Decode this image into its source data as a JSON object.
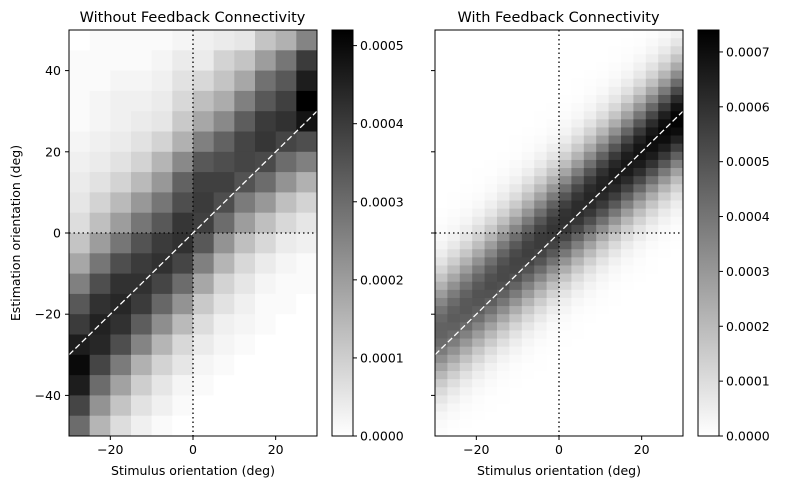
{
  "chart_data": [
    {
      "type": "heatmap",
      "title": "Without Feedback Connectivity",
      "xlabel": "Stimulus orientation (deg)",
      "ylabel": "Estimation orientation (deg)",
      "xlim": [
        -30,
        30
      ],
      "ylim": [
        -50,
        50
      ],
      "xticks": [
        -20,
        0,
        20
      ],
      "yticks": [
        -40,
        -20,
        0,
        20,
        40
      ],
      "colormap": "gray_r",
      "clim": [
        0,
        0.00052
      ],
      "colorbar_ticks": [
        "0.0000",
        "0.0001",
        "0.0002",
        "0.0003",
        "0.0004",
        "0.0005"
      ],
      "colorbar_tick_values": [
        0,
        0.0001,
        0.0002,
        0.0003,
        0.0004,
        0.0005
      ],
      "reference_lines": [
        "x = 0 (dotted)",
        "y = 0 (dotted)",
        "y = x (white dashed)"
      ],
      "grid": false,
      "row_y_centers": [
        47.5,
        42.5,
        37.5,
        32.5,
        27.5,
        22.5,
        17.5,
        12.5,
        7.5,
        2.5,
        -2.5,
        -7.5,
        -12.5,
        -17.5,
        -22.5,
        -27.5,
        -32.5,
        -37.5,
        -42.5,
        -47.5
      ],
      "col_x_centers": [
        -27.5,
        -22.5,
        -17.5,
        -12.5,
        -7.5,
        -2.5,
        2.5,
        7.5,
        12.5,
        17.5,
        22.5,
        27.5
      ],
      "values": [
        [
          0.0,
          1e-05,
          1e-05,
          1e-05,
          1e-05,
          2e-05,
          3e-05,
          4e-05,
          5e-05,
          0.00012,
          0.00016,
          0.00025
        ],
        [
          1e-05,
          1e-05,
          1e-05,
          1e-05,
          2e-05,
          4e-05,
          4e-05,
          9e-05,
          0.00012,
          0.0002,
          0.00028,
          0.0004
        ],
        [
          1e-05,
          1e-05,
          2e-05,
          2e-05,
          3e-05,
          6e-05,
          8e-05,
          0.00012,
          0.00018,
          0.00029,
          0.00034,
          0.00046
        ],
        [
          1e-05,
          2e-05,
          3e-05,
          3e-05,
          4e-05,
          8e-05,
          0.00013,
          0.00017,
          0.00026,
          0.00034,
          0.00039,
          0.00052
        ],
        [
          1e-05,
          2e-05,
          3e-05,
          4e-05,
          5e-05,
          0.00011,
          0.00018,
          0.00024,
          0.00033,
          0.0004,
          0.00042,
          0.00048
        ],
        [
          2e-05,
          3e-05,
          4e-05,
          6e-05,
          9e-05,
          0.00016,
          0.00026,
          0.00032,
          0.00038,
          0.00041,
          0.00038,
          0.00036
        ],
        [
          3e-05,
          4e-05,
          6e-05,
          9e-05,
          0.00015,
          0.00024,
          0.00034,
          0.00036,
          0.00038,
          0.00037,
          0.0003,
          0.00026
        ],
        [
          4e-05,
          6e-05,
          9e-05,
          0.00014,
          0.00021,
          0.00032,
          0.00039,
          0.00039,
          0.00035,
          0.0003,
          0.00022,
          0.00016
        ],
        [
          5e-05,
          9e-05,
          0.00014,
          0.00021,
          0.00028,
          0.00036,
          0.0004,
          0.00036,
          0.00027,
          0.00021,
          0.00013,
          9e-05
        ],
        [
          7e-05,
          0.00013,
          0.0002,
          0.00028,
          0.00034,
          0.00041,
          0.00039,
          0.0003,
          0.0002,
          0.00013,
          8e-05,
          5e-05
        ],
        [
          0.00012,
          0.0002,
          0.00028,
          0.00035,
          0.0004,
          0.00042,
          0.00034,
          0.00022,
          0.00013,
          8e-05,
          4e-05,
          3e-05
        ],
        [
          0.00018,
          0.00028,
          0.00036,
          0.0004,
          0.00042,
          0.00038,
          0.00026,
          0.00015,
          8e-05,
          4e-05,
          2e-05,
          1e-05
        ],
        [
          0.00026,
          0.00036,
          0.00042,
          0.00042,
          0.00038,
          0.0003,
          0.00018,
          9e-05,
          5e-05,
          2e-05,
          1e-05,
          1e-05
        ],
        [
          0.00034,
          0.00042,
          0.00044,
          0.0004,
          0.00031,
          0.00022,
          0.00011,
          6e-05,
          3e-05,
          1e-05,
          1e-05,
          0.0
        ],
        [
          0.0004,
          0.00045,
          0.00042,
          0.00033,
          0.00023,
          0.00014,
          7e-05,
          3e-05,
          2e-05,
          1e-05,
          0.0,
          0.0
        ],
        [
          0.00046,
          0.00044,
          0.00036,
          0.00025,
          0.00015,
          8e-05,
          4e-05,
          2e-05,
          1e-05,
          0.0,
          0.0,
          0.0
        ],
        [
          0.0005,
          0.00038,
          0.00027,
          0.00016,
          9e-05,
          5e-05,
          2e-05,
          1e-05,
          0.0,
          0.0,
          0.0,
          0.0
        ],
        [
          0.00046,
          0.0003,
          0.00019,
          0.0001,
          5e-05,
          2e-05,
          1e-05,
          0.0,
          0.0,
          0.0,
          0.0,
          0.0
        ],
        [
          0.00038,
          0.00022,
          0.00012,
          6e-05,
          3e-05,
          1e-05,
          0.0,
          0.0,
          0.0,
          0.0,
          0.0,
          0.0
        ],
        [
          0.0003,
          0.00015,
          7e-05,
          3e-05,
          1e-05,
          0.0,
          0.0,
          0.0,
          0.0,
          0.0,
          0.0,
          0.0
        ]
      ]
    },
    {
      "type": "heatmap",
      "title": "With Feedback Connectivity",
      "xlabel": "Stimulus orientation (deg)",
      "ylabel": "",
      "xlim": [
        -30,
        30
      ],
      "ylim": [
        -50,
        50
      ],
      "xticks": [
        -20,
        0,
        20
      ],
      "yticks": [
        -40,
        -20,
        0,
        20,
        40
      ],
      "colormap": "gray_r",
      "clim": [
        0,
        0.00074
      ],
      "colorbar_ticks": [
        "0.0000",
        "0.0001",
        "0.0002",
        "0.0003",
        "0.0004",
        "0.0005",
        "0.0006",
        "0.0007"
      ],
      "colorbar_tick_values": [
        0,
        0.0001,
        0.0002,
        0.0003,
        0.0004,
        0.0005,
        0.0006,
        0.0007
      ],
      "reference_lines": [
        "x = 0 (dotted)",
        "y = 0 (dotted)",
        "y = x (white dashed)"
      ],
      "grid": false,
      "row_y_centers": [
        49,
        47,
        45,
        43,
        41,
        39,
        37,
        35,
        33,
        31,
        29,
        27,
        25,
        23,
        21,
        19,
        17,
        15,
        13,
        11,
        9,
        7,
        5,
        3,
        1,
        -1,
        -3,
        -5,
        -7,
        -9,
        -11,
        -13,
        -15,
        -17,
        -19,
        -21,
        -23,
        -25,
        -27,
        -29,
        -31,
        -33,
        -35,
        -37,
        -39,
        -41,
        -43,
        -45,
        -47,
        -49
      ],
      "col_x_centers": [
        -28.5,
        -25.5,
        -22.5,
        -19.5,
        -16.5,
        -13.5,
        -10.5,
        -7.5,
        -4.5,
        -1.5,
        1.5,
        4.5,
        7.5,
        10.5,
        13.5,
        16.5,
        19.5,
        22.5,
        25.5,
        28.5
      ],
      "gaussian_model": {
        "description": "cell value = peak * exp(-(y - mu)^2 / (2*sigma^2)); mu = 0.9*x + 2, sigma = 9, peak rises from 0.00045 at x = -30 to 0.00074 at x = +30",
        "mu_slope": 0.9,
        "mu_offset": 2,
        "sigma": 9,
        "peak_at_xmin": 0.00045,
        "peak_at_xmax": 0.00074
      }
    }
  ]
}
